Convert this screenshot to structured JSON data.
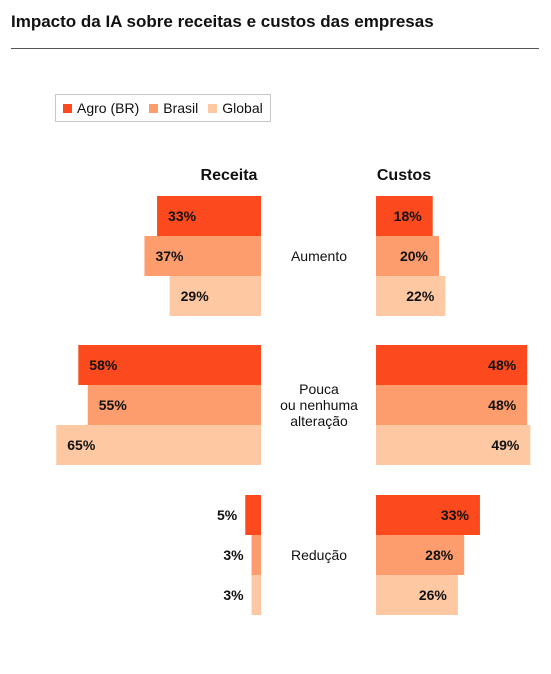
{
  "chart_data": {
    "type": "bar",
    "title": "Impacto da IA sobre receitas e custos das empresas",
    "panels": [
      "Receita",
      "Custos"
    ],
    "categories": [
      "Aumento",
      "Pouca\nou nenhuma\nalteração",
      "Redução"
    ],
    "series": [
      {
        "name": "Agro (BR)",
        "color": "#fc4a1e",
        "receita": [
          33,
          58,
          5
        ],
        "custos": [
          18,
          48,
          33
        ]
      },
      {
        "name": "Brasil",
        "color": "#fd9c6c",
        "receita": [
          37,
          55,
          3
        ],
        "custos": [
          20,
          48,
          28
        ]
      },
      {
        "name": "Global",
        "color": "#fec8a2",
        "receita": [
          29,
          65,
          3
        ],
        "custos": [
          22,
          49,
          26
        ]
      }
    ],
    "unit": "%",
    "legend": "top-left"
  }
}
